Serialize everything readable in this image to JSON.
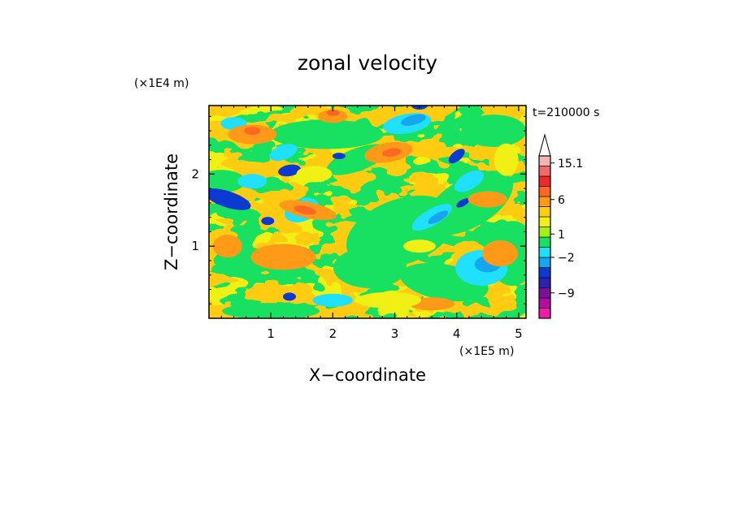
{
  "chart_data": {
    "type": "heatmap",
    "title": "zonal velocity",
    "xlabel": "X−coordinate",
    "ylabel": "Z−coordinate",
    "x_unit": "(×1E5 m)",
    "y_unit": "(×1E4 m)",
    "time_label": "t=210000 s",
    "xlim": [
      0,
      5.12
    ],
    "ylim": [
      0,
      2.95
    ],
    "x_ticks": [
      {
        "v": 1,
        "label": "1"
      },
      {
        "v": 2,
        "label": "2"
      },
      {
        "v": 3,
        "label": "3"
      },
      {
        "v": 4,
        "label": "4"
      },
      {
        "v": 5,
        "label": "5"
      }
    ],
    "y_ticks": [
      {
        "v": 1,
        "label": "1"
      },
      {
        "v": 2,
        "label": "2"
      }
    ],
    "colorbar": {
      "levels": [
        {
          "color": "#ee1ca8"
        },
        {
          "color": "#b00fa2"
        },
        {
          "color": "#7a0f9a"
        },
        {
          "color": "#2a23b2"
        },
        {
          "color": "#0a3ad2"
        },
        {
          "color": "#16a6f0"
        },
        {
          "color": "#20e0ff"
        },
        {
          "color": "#18e060"
        },
        {
          "color": "#a6f01a"
        },
        {
          "color": "#f0f014"
        },
        {
          "color": "#ffcc12"
        },
        {
          "color": "#ff9a18"
        },
        {
          "color": "#ff6820"
        },
        {
          "color": "#ee2a2a"
        },
        {
          "color": "#f56868"
        },
        {
          "color": "#f5b3b3"
        }
      ],
      "labels": [
        {
          "level": 2.5,
          "text": "−9"
        },
        {
          "level": 6,
          "text": "−2"
        },
        {
          "level": 8.3,
          "text": "1"
        },
        {
          "level": 11.7,
          "text": "6"
        },
        {
          "level": 15.3,
          "text": "15.1"
        }
      ]
    }
  }
}
